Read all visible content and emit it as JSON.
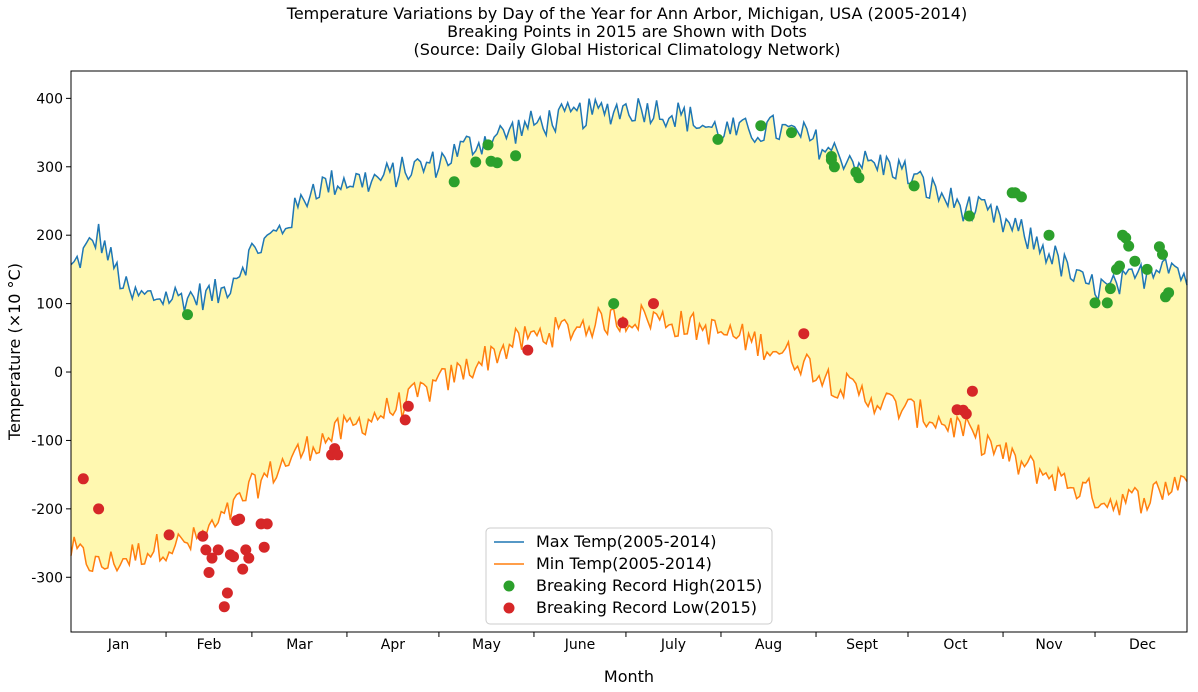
{
  "chart_data": {
    "type": "line",
    "title": [
      "Temperature Variations by Day of the Year for Ann Arbor, Michigan, USA (2005-2014)",
      "Breaking Points in 2015 are Shown with Dots",
      "(Source: Daily Global Historical Climatology Network)"
    ],
    "xlabel": "Month",
    "ylabel": "Temperature (×10 °C)",
    "xlim": [
      1,
      365
    ],
    "ylim": [
      -380,
      440
    ],
    "yticks": [
      -300,
      -200,
      -100,
      0,
      100,
      200,
      300,
      400
    ],
    "month_labels": [
      "Jan",
      "Feb",
      "Mar",
      "Apr",
      "May",
      "June",
      "July",
      "Aug",
      "Sept",
      "Oct",
      "Nov",
      "Dec"
    ],
    "fill_between": {
      "color": "#fff8b0"
    },
    "legend": {
      "location": "lower-center"
    },
    "series": [
      {
        "name": "Max Temp(2005-2014)",
        "style": "line",
        "color": "#1f77b4",
        "anchors": {
          "x": [
            1,
            10,
            20,
            30,
            40,
            50,
            60,
            70,
            80,
            90,
            100,
            110,
            120,
            130,
            140,
            150,
            160,
            170,
            180,
            190,
            200,
            210,
            220,
            230,
            240,
            250,
            260,
            270,
            280,
            290,
            300,
            310,
            320,
            330,
            340,
            350,
            358,
            365
          ],
          "y": [
            150,
            200,
            110,
            110,
            110,
            115,
            175,
            210,
            270,
            280,
            280,
            295,
            305,
            330,
            345,
            360,
            370,
            378,
            385,
            385,
            375,
            355,
            350,
            355,
            345,
            320,
            305,
            300,
            270,
            245,
            230,
            205,
            175,
            130,
            120,
            140,
            170,
            135
          ]
        }
      },
      {
        "name": "Min Temp(2005-2014)",
        "style": "line",
        "color": "#ff7f0e",
        "anchors": {
          "x": [
            1,
            10,
            20,
            30,
            40,
            50,
            60,
            70,
            80,
            90,
            100,
            110,
            120,
            130,
            140,
            150,
            160,
            170,
            180,
            190,
            200,
            210,
            220,
            230,
            240,
            250,
            260,
            270,
            280,
            290,
            300,
            310,
            320,
            330,
            340,
            350,
            358,
            365
          ],
          "y": [
            -260,
            -285,
            -270,
            -255,
            -250,
            -220,
            -170,
            -135,
            -105,
            -85,
            -65,
            -45,
            -20,
            5,
            30,
            50,
            60,
            70,
            78,
            80,
            70,
            60,
            50,
            35,
            15,
            -15,
            -35,
            -50,
            -65,
            -80,
            -105,
            -135,
            -150,
            -170,
            -190,
            -185,
            -170,
            -150
          ]
        }
      },
      {
        "name": "Breaking Record High(2015)",
        "style": "scatter",
        "color": "#2ca02c",
        "x": [
          39,
          126,
          133,
          137,
          138,
          140,
          146,
          178,
          212,
          226,
          236,
          249,
          249,
          250,
          257,
          258,
          276,
          294,
          308,
          309,
          311,
          320,
          335,
          339,
          340,
          342,
          343,
          344,
          345,
          346,
          348,
          352,
          356,
          357,
          358,
          359
        ],
        "y": [
          84,
          278,
          307,
          332,
          308,
          306,
          316,
          100,
          340,
          360,
          350,
          315,
          310,
          300,
          292,
          284,
          272,
          228,
          262,
          262,
          256,
          200,
          101,
          101,
          122,
          150,
          155,
          200,
          196,
          184,
          162,
          150,
          183,
          172,
          110,
          116
        ]
      },
      {
        "name": "Breaking Record Low(2015)",
        "style": "scatter",
        "color": "#d62728",
        "x": [
          5,
          10,
          33,
          44,
          45,
          46,
          47,
          49,
          51,
          52,
          53,
          54,
          55,
          56,
          57,
          58,
          59,
          63,
          64,
          65,
          86,
          87,
          88,
          110,
          111,
          150,
          181,
          191,
          240,
          290,
          292,
          293,
          295
        ],
        "y": [
          -156,
          -200,
          -238,
          -240,
          -260,
          -293,
          -272,
          -260,
          -343,
          -323,
          -267,
          -270,
          -217,
          -215,
          -288,
          -260,
          -272,
          -222,
          -256,
          -222,
          -121,
          -112,
          -121,
          -70,
          -50,
          32,
          72,
          100,
          56,
          -55,
          -56,
          -61,
          -28
        ]
      }
    ]
  }
}
